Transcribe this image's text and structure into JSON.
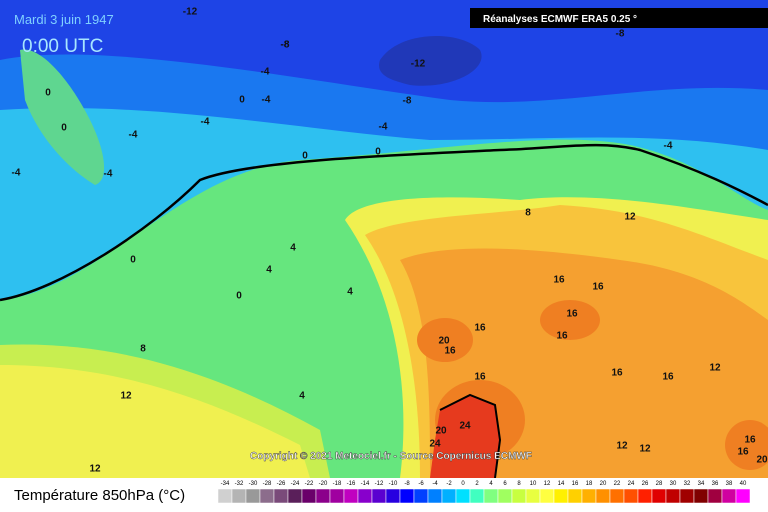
{
  "header": {
    "date": "Mardi 3 juin 1947",
    "time": "0:00 UTC",
    "source_box": "Réanalyses ECMWF ERA5 0.25 °",
    "copyright": "Copyright © 2021 Meteociel.fr - Source Copernicus ECMWF"
  },
  "contour_labels": [
    -12,
    -8,
    -12,
    -8,
    -8,
    -4,
    -4,
    -4,
    -4,
    0,
    0,
    -4,
    0,
    0,
    4,
    4,
    4,
    8,
    12,
    4,
    12,
    8,
    12,
    16,
    16,
    16,
    16,
    16,
    20,
    16,
    16,
    16,
    16,
    12,
    20,
    24,
    24,
    12,
    12,
    16,
    16,
    20,
    0,
    0,
    -4,
    0,
    -4,
    -4,
    -8
  ],
  "legend": {
    "title": "Température 850hPa (°C)",
    "ticks": [
      -34,
      -32,
      -30,
      -28,
      -26,
      -24,
      -22,
      -20,
      -18,
      -16,
      -14,
      -12,
      -10,
      -8,
      -6,
      -4,
      -2,
      0,
      2,
      4,
      6,
      8,
      10,
      12,
      14,
      16,
      18,
      20,
      22,
      24,
      26,
      28,
      30,
      32,
      34,
      36,
      38,
      40
    ],
    "colors": [
      "#d0d0d0",
      "#b4b4b4",
      "#999999",
      "#8c6d8c",
      "#7a4a7a",
      "#5a1f5a",
      "#6a006a",
      "#8b008b",
      "#a000a0",
      "#c000c0",
      "#8800cc",
      "#5a00d0",
      "#2800e0",
      "#0000ff",
      "#0040ff",
      "#0080ff",
      "#00b0ff",
      "#00e0ff",
      "#40ffc0",
      "#80ff80",
      "#a0ff60",
      "#c8ff40",
      "#e8ff40",
      "#ffff40",
      "#fff000",
      "#ffd000",
      "#ffb000",
      "#ff9000",
      "#ff7000",
      "#ff5000",
      "#ff2000",
      "#e00000",
      "#c00000",
      "#a00000",
      "#800000",
      "#a00040",
      "#d000a0",
      "#ff00ff"
    ]
  }
}
